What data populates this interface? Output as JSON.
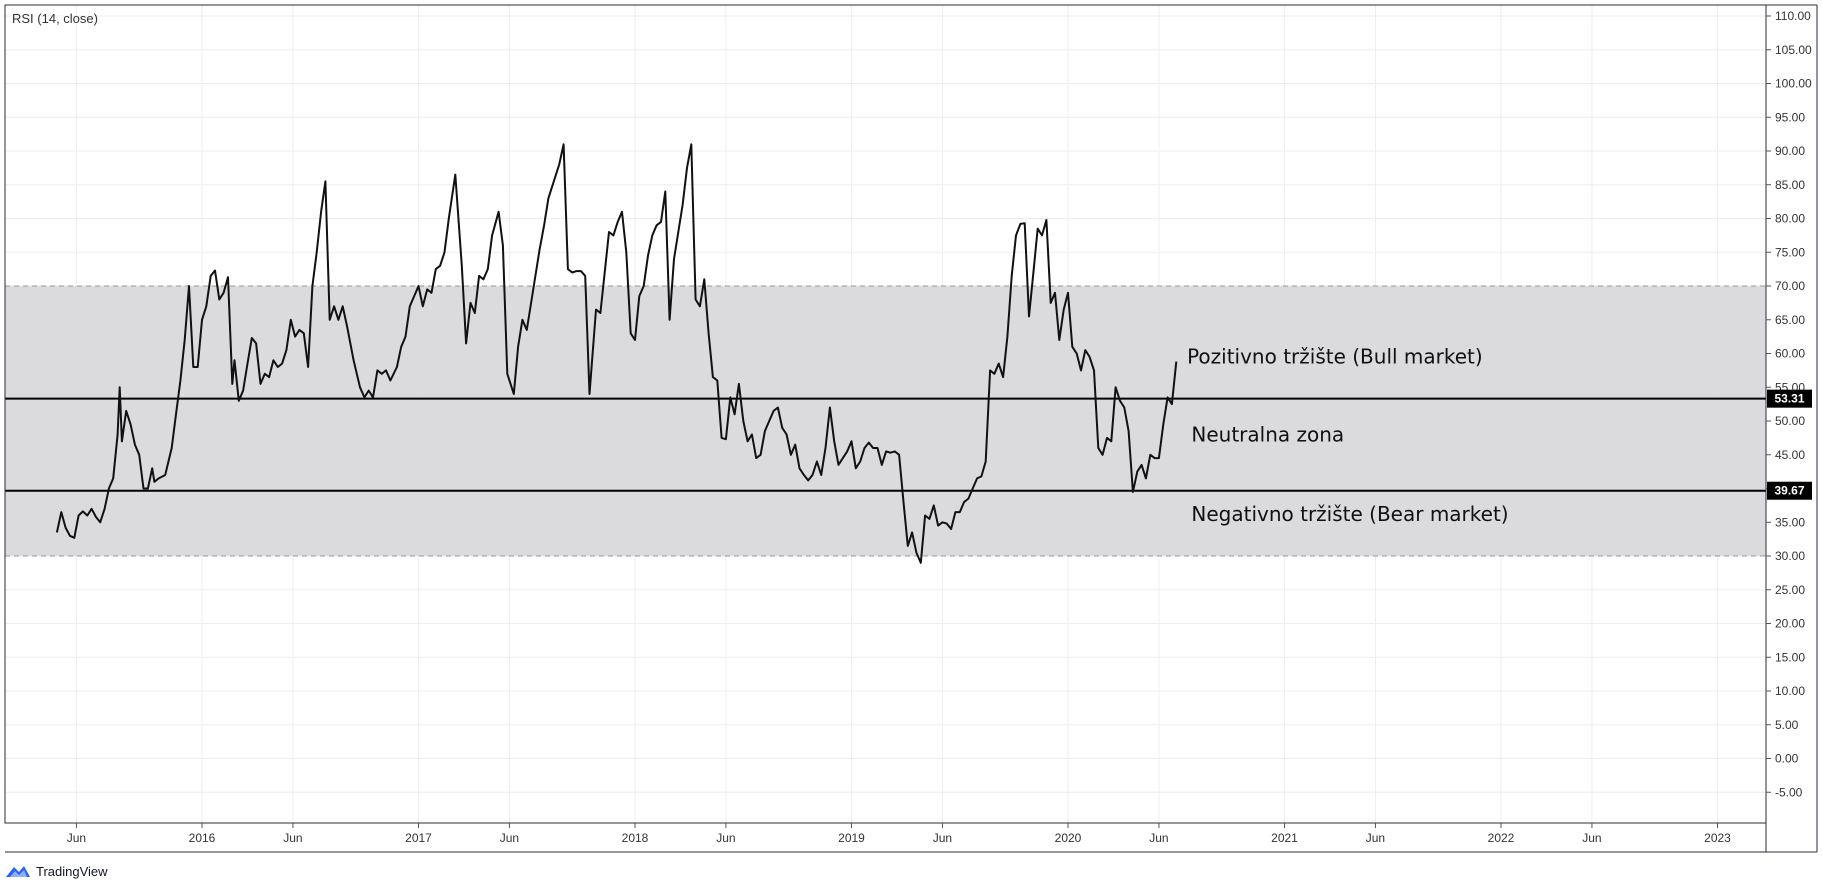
{
  "indicator_label": "RSI (14, close)",
  "brand": {
    "name": "TradingView"
  },
  "colors": {
    "line": "#111111",
    "band_fill": "#d9d9db",
    "grid": "#eceef2",
    "badge_bg": "#000000",
    "brand_accent": "#2962ff"
  },
  "chart_data": {
    "type": "line",
    "title": "RSI (14, close)",
    "xlabel": "",
    "ylabel": "",
    "ylim": [
      -10,
      112
    ],
    "xlim": [
      2015.22,
      2023.32
    ],
    "grid": true,
    "y_ticks": [
      "110.00",
      "105.00",
      "100.00",
      "95.00",
      "90.00",
      "85.00",
      "80.00",
      "75.00",
      "70.00",
      "65.00",
      "60.00",
      "55.00",
      "50.00",
      "45.00",
      "40.00",
      "35.00",
      "30.00",
      "25.00",
      "20.00",
      "15.00",
      "10.00",
      "5.00",
      "0.00",
      "-5.00"
    ],
    "x_ticks": [
      {
        "label": "Jun",
        "x": 2015.42
      },
      {
        "label": "2016",
        "x": 2016.0
      },
      {
        "label": "Jun",
        "x": 2016.42
      },
      {
        "label": "2017",
        "x": 2017.0
      },
      {
        "label": "Jun",
        "x": 2017.42
      },
      {
        "label": "2018",
        "x": 2018.0
      },
      {
        "label": "Jun",
        "x": 2018.42
      },
      {
        "label": "2019",
        "x": 2019.0
      },
      {
        "label": "Jun",
        "x": 2019.42
      },
      {
        "label": "2020",
        "x": 2020.0
      },
      {
        "label": "Jun",
        "x": 2020.42
      },
      {
        "label": "2021",
        "x": 2021.0
      },
      {
        "label": "Jun",
        "x": 2021.42
      },
      {
        "label": "2022",
        "x": 2022.0
      },
      {
        "label": "Jun",
        "x": 2022.42
      },
      {
        "label": "2023",
        "x": 2023.0
      }
    ],
    "band": {
      "lower": 30,
      "upper": 70
    },
    "levels": [
      {
        "value": 53.31,
        "label": "53.31"
      },
      {
        "value": 39.67,
        "label": "39.67"
      }
    ],
    "annotations": [
      {
        "text": "Pozitivno tržište (Bull market)",
        "x": 2020.55,
        "y": 58.5
      },
      {
        "text": "Neutralna zona",
        "x": 2020.57,
        "y": 47.0
      },
      {
        "text": "Negativno tržište (Bear market)",
        "x": 2020.57,
        "y": 35.2
      }
    ],
    "series": [
      {
        "name": "RSI",
        "points": [
          [
            2015.33,
            33.5
          ],
          [
            2015.35,
            36.5
          ],
          [
            2015.37,
            34.2
          ],
          [
            2015.39,
            33.0
          ],
          [
            2015.41,
            32.7
          ],
          [
            2015.43,
            36.0
          ],
          [
            2015.45,
            36.6
          ],
          [
            2015.47,
            36.0
          ],
          [
            2015.49,
            37.0
          ],
          [
            2015.51,
            35.8
          ],
          [
            2015.53,
            35.0
          ],
          [
            2015.55,
            37.0
          ],
          [
            2015.57,
            40.0
          ],
          [
            2015.59,
            41.5
          ],
          [
            2015.61,
            48.0
          ],
          [
            2015.62,
            55.0
          ],
          [
            2015.63,
            47.0
          ],
          [
            2015.65,
            51.5
          ],
          [
            2015.67,
            49.5
          ],
          [
            2015.69,
            46.5
          ],
          [
            2015.71,
            45.0
          ],
          [
            2015.73,
            40.0
          ],
          [
            2015.75,
            40.0
          ],
          [
            2015.77,
            43.0
          ],
          [
            2015.78,
            41.0
          ],
          [
            2015.8,
            41.5
          ],
          [
            2015.83,
            42.0
          ],
          [
            2015.86,
            46.0
          ],
          [
            2015.88,
            51.0
          ],
          [
            2015.9,
            56.0
          ],
          [
            2015.92,
            62.0
          ],
          [
            2015.94,
            70.0
          ],
          [
            2015.96,
            58.0
          ],
          [
            2015.98,
            58.0
          ],
          [
            2016.0,
            65.0
          ],
          [
            2016.02,
            67.0
          ],
          [
            2016.04,
            71.5
          ],
          [
            2016.06,
            72.3
          ],
          [
            2016.08,
            68.0
          ],
          [
            2016.1,
            69.0
          ],
          [
            2016.12,
            71.3
          ],
          [
            2016.14,
            55.5
          ],
          [
            2016.15,
            59.0
          ],
          [
            2016.17,
            53.0
          ],
          [
            2016.19,
            54.5
          ],
          [
            2016.21,
            58.5
          ],
          [
            2016.23,
            62.3
          ],
          [
            2016.25,
            61.5
          ],
          [
            2016.27,
            55.5
          ],
          [
            2016.29,
            57.0
          ],
          [
            2016.31,
            56.5
          ],
          [
            2016.33,
            59.0
          ],
          [
            2016.35,
            58.0
          ],
          [
            2016.37,
            58.5
          ],
          [
            2016.39,
            60.5
          ],
          [
            2016.41,
            65.0
          ],
          [
            2016.43,
            62.5
          ],
          [
            2016.45,
            63.5
          ],
          [
            2016.47,
            63.0
          ],
          [
            2016.49,
            58.0
          ],
          [
            2016.51,
            70.0
          ],
          [
            2016.53,
            75.0
          ],
          [
            2016.55,
            81.0
          ],
          [
            2016.57,
            85.5
          ],
          [
            2016.59,
            65.0
          ],
          [
            2016.61,
            67.0
          ],
          [
            2016.63,
            65.0
          ],
          [
            2016.65,
            67.0
          ],
          [
            2016.67,
            64.0
          ],
          [
            2016.7,
            59.0
          ],
          [
            2016.73,
            55.0
          ],
          [
            2016.75,
            53.5
          ],
          [
            2016.77,
            54.5
          ],
          [
            2016.79,
            53.5
          ],
          [
            2016.81,
            57.5
          ],
          [
            2016.83,
            57.0
          ],
          [
            2016.85,
            57.5
          ],
          [
            2016.87,
            56.0
          ],
          [
            2016.9,
            58.0
          ],
          [
            2016.92,
            61.0
          ],
          [
            2016.94,
            62.5
          ],
          [
            2016.96,
            67.0
          ],
          [
            2016.98,
            68.5
          ],
          [
            2017.0,
            70.0
          ],
          [
            2017.02,
            67.0
          ],
          [
            2017.04,
            69.5
          ],
          [
            2017.06,
            69.0
          ],
          [
            2017.08,
            72.5
          ],
          [
            2017.1,
            73.0
          ],
          [
            2017.12,
            75.0
          ],
          [
            2017.14,
            80.0
          ],
          [
            2017.17,
            86.5
          ],
          [
            2017.2,
            73.0
          ],
          [
            2017.22,
            61.5
          ],
          [
            2017.24,
            67.5
          ],
          [
            2017.26,
            66.0
          ],
          [
            2017.28,
            71.5
          ],
          [
            2017.3,
            71.0
          ],
          [
            2017.32,
            72.5
          ],
          [
            2017.34,
            77.5
          ],
          [
            2017.37,
            81.0
          ],
          [
            2017.39,
            76.0
          ],
          [
            2017.41,
            57.0
          ],
          [
            2017.44,
            54.0
          ],
          [
            2017.46,
            61.0
          ],
          [
            2017.48,
            65.0
          ],
          [
            2017.5,
            63.5
          ],
          [
            2017.52,
            67.5
          ],
          [
            2017.54,
            71.5
          ],
          [
            2017.56,
            75.5
          ],
          [
            2017.58,
            79.0
          ],
          [
            2017.6,
            83.0
          ],
          [
            2017.62,
            85.0
          ],
          [
            2017.65,
            88.0
          ],
          [
            2017.67,
            91.0
          ],
          [
            2017.69,
            72.5
          ],
          [
            2017.71,
            72.0
          ],
          [
            2017.73,
            72.2
          ],
          [
            2017.75,
            72.2
          ],
          [
            2017.77,
            71.5
          ],
          [
            2017.79,
            54.0
          ],
          [
            2017.82,
            66.5
          ],
          [
            2017.84,
            66.0
          ],
          [
            2017.86,
            72.0
          ],
          [
            2017.88,
            78.0
          ],
          [
            2017.9,
            77.5
          ],
          [
            2017.92,
            79.5
          ],
          [
            2017.94,
            81.0
          ],
          [
            2017.96,
            75.0
          ],
          [
            2017.98,
            63.0
          ],
          [
            2018.0,
            62.0
          ],
          [
            2018.02,
            68.5
          ],
          [
            2018.04,
            70.0
          ],
          [
            2018.06,
            74.5
          ],
          [
            2018.08,
            77.5
          ],
          [
            2018.1,
            79.0
          ],
          [
            2018.12,
            79.5
          ],
          [
            2018.14,
            84.0
          ],
          [
            2018.16,
            65.0
          ],
          [
            2018.18,
            74.0
          ],
          [
            2018.2,
            78.0
          ],
          [
            2018.22,
            82.0
          ],
          [
            2018.24,
            87.5
          ],
          [
            2018.26,
            91.0
          ],
          [
            2018.28,
            68.0
          ],
          [
            2018.3,
            67.0
          ],
          [
            2018.32,
            71.0
          ],
          [
            2018.34,
            63.0
          ],
          [
            2018.36,
            56.5
          ],
          [
            2018.38,
            56.0
          ],
          [
            2018.4,
            47.5
          ],
          [
            2018.42,
            47.3
          ],
          [
            2018.44,
            53.5
          ],
          [
            2018.46,
            51.0
          ],
          [
            2018.48,
            55.5
          ],
          [
            2018.5,
            50.0
          ],
          [
            2018.52,
            47.0
          ],
          [
            2018.54,
            48.0
          ],
          [
            2018.56,
            44.5
          ],
          [
            2018.58,
            45.0
          ],
          [
            2018.6,
            48.5
          ],
          [
            2018.62,
            50.0
          ],
          [
            2018.64,
            51.5
          ],
          [
            2018.66,
            52.0
          ],
          [
            2018.68,
            49.0
          ],
          [
            2018.7,
            48.0
          ],
          [
            2018.72,
            45.0
          ],
          [
            2018.74,
            46.5
          ],
          [
            2018.76,
            43.0
          ],
          [
            2018.78,
            42.0
          ],
          [
            2018.8,
            41.2
          ],
          [
            2018.82,
            42.0
          ],
          [
            2018.84,
            44.0
          ],
          [
            2018.86,
            42.0
          ],
          [
            2018.88,
            46.0
          ],
          [
            2018.9,
            52.0
          ],
          [
            2018.92,
            47.0
          ],
          [
            2018.94,
            43.5
          ],
          [
            2018.96,
            44.5
          ],
          [
            2018.98,
            45.5
          ],
          [
            2019.0,
            47.0
          ],
          [
            2019.02,
            43.0
          ],
          [
            2019.04,
            44.0
          ],
          [
            2019.06,
            46.0
          ],
          [
            2019.08,
            46.8
          ],
          [
            2019.1,
            46.0
          ],
          [
            2019.12,
            46.0
          ],
          [
            2019.14,
            43.5
          ],
          [
            2019.16,
            45.5
          ],
          [
            2019.18,
            45.3
          ],
          [
            2019.2,
            45.5
          ],
          [
            2019.22,
            45.0
          ],
          [
            2019.24,
            38.0
          ],
          [
            2019.26,
            31.5
          ],
          [
            2019.28,
            33.5
          ],
          [
            2019.3,
            30.5
          ],
          [
            2019.32,
            29.0
          ],
          [
            2019.34,
            36.0
          ],
          [
            2019.36,
            35.5
          ],
          [
            2019.38,
            37.5
          ],
          [
            2019.4,
            34.5
          ],
          [
            2019.42,
            35.0
          ],
          [
            2019.44,
            34.8
          ],
          [
            2019.46,
            34.0
          ],
          [
            2019.48,
            36.5
          ],
          [
            2019.5,
            36.5
          ],
          [
            2019.52,
            38.0
          ],
          [
            2019.54,
            38.5
          ],
          [
            2019.56,
            40.0
          ],
          [
            2019.58,
            41.5
          ],
          [
            2019.6,
            41.8
          ],
          [
            2019.62,
            44.0
          ],
          [
            2019.64,
            57.5
          ],
          [
            2019.66,
            57.0
          ],
          [
            2019.68,
            58.5
          ],
          [
            2019.7,
            56.5
          ],
          [
            2019.72,
            62.5
          ],
          [
            2019.74,
            71.5
          ],
          [
            2019.76,
            77.5
          ],
          [
            2019.78,
            79.2
          ],
          [
            2019.8,
            79.3
          ],
          [
            2019.82,
            65.5
          ],
          [
            2019.84,
            72.0
          ],
          [
            2019.86,
            78.5
          ],
          [
            2019.88,
            77.5
          ],
          [
            2019.9,
            79.8
          ],
          [
            2019.92,
            67.5
          ],
          [
            2019.94,
            69.0
          ],
          [
            2019.96,
            62.0
          ],
          [
            2019.98,
            66.5
          ],
          [
            2020.0,
            69.0
          ],
          [
            2020.02,
            61.0
          ],
          [
            2020.04,
            60.0
          ],
          [
            2020.06,
            57.5
          ],
          [
            2020.08,
            60.5
          ],
          [
            2020.1,
            59.5
          ],
          [
            2020.12,
            57.5
          ],
          [
            2020.14,
            46.0
          ],
          [
            2020.16,
            45.0
          ],
          [
            2020.18,
            47.5
          ],
          [
            2020.2,
            47.0
          ],
          [
            2020.22,
            55.0
          ],
          [
            2020.24,
            53.0
          ],
          [
            2020.26,
            52.0
          ],
          [
            2020.28,
            48.5
          ],
          [
            2020.3,
            39.5
          ],
          [
            2020.32,
            42.5
          ],
          [
            2020.34,
            43.5
          ],
          [
            2020.36,
            41.5
          ],
          [
            2020.38,
            45.0
          ],
          [
            2020.4,
            44.5
          ],
          [
            2020.42,
            44.5
          ],
          [
            2020.44,
            49.5
          ],
          [
            2020.46,
            53.5
          ],
          [
            2020.48,
            52.5
          ],
          [
            2020.5,
            58.8
          ]
        ]
      }
    ]
  }
}
